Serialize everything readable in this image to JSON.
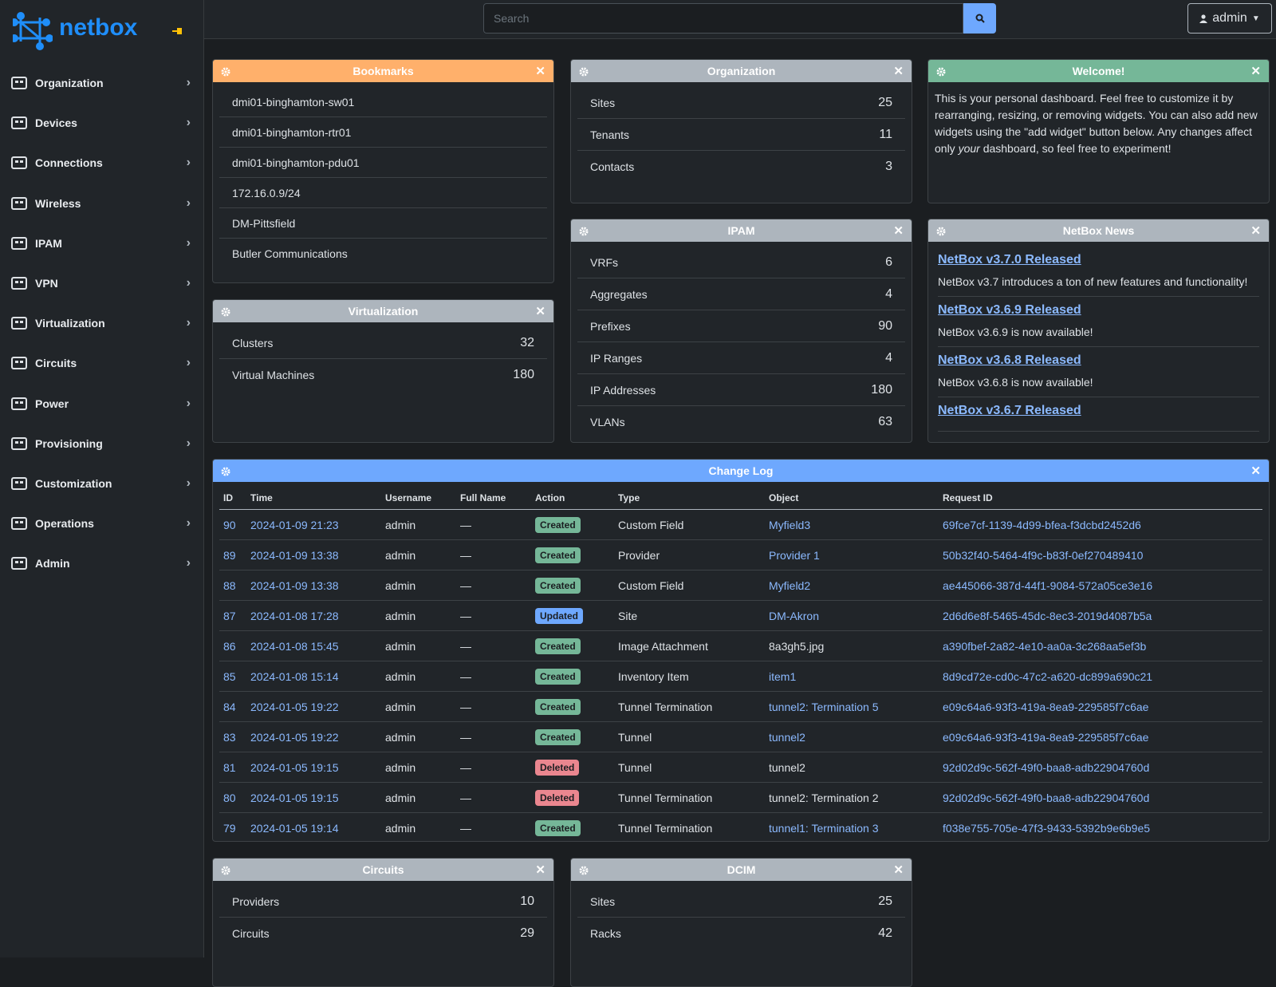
{
  "sidebar": {
    "brand": "netbox",
    "menu": [
      "Organization",
      "Devices",
      "Connections",
      "Wireless",
      "IPAM",
      "VPN",
      "Virtualization",
      "Circuits",
      "Power",
      "Provisioning",
      "Customization",
      "Operations",
      "Admin"
    ]
  },
  "header": {
    "search_placeholder": "Search",
    "user": "admin"
  },
  "widgets": {
    "bookmarks": {
      "title": "Bookmarks",
      "color": "#ffb06b",
      "items": [
        "dmi01-binghamton-sw01",
        "dmi01-binghamton-rtr01",
        "dmi01-binghamton-pdu01",
        "172.16.0.9/24",
        "DM-Pittsfield",
        "Butler Communications"
      ]
    },
    "organization": {
      "title": "Organization",
      "color": "#adb5bd",
      "rows": [
        {
          "label": "Sites",
          "value": 25
        },
        {
          "label": "Tenants",
          "value": 11
        },
        {
          "label": "Contacts",
          "value": 3
        }
      ]
    },
    "welcome": {
      "title": "Welcome!",
      "color": "#75b798",
      "text_before": "This is your personal dashboard. Feel free to customize it by rearranging, resizing, or removing widgets. You can also add new widgets using the \"add widget\" button below. Any changes affect only ",
      "text_emphasis": "your",
      "text_after": " dashboard, so feel free to experiment!"
    },
    "virtualization": {
      "title": "Virtualization",
      "color": "#adb5bd",
      "rows": [
        {
          "label": "Clusters",
          "value": 32
        },
        {
          "label": "Virtual Machines",
          "value": 180
        }
      ]
    },
    "ipam": {
      "title": "IPAM",
      "color": "#adb5bd",
      "rows": [
        {
          "label": "VRFs",
          "value": 6
        },
        {
          "label": "Aggregates",
          "value": 4
        },
        {
          "label": "Prefixes",
          "value": 90
        },
        {
          "label": "IP Ranges",
          "value": 4
        },
        {
          "label": "IP Addresses",
          "value": 180
        },
        {
          "label": "VLANs",
          "value": 63
        }
      ]
    },
    "news": {
      "title": "NetBox News",
      "color": "#adb5bd",
      "items": [
        {
          "title": "NetBox v3.7.0 Released",
          "description": "NetBox v3.7 introduces a ton of new features and functionality!"
        },
        {
          "title": "NetBox v3.6.9 Released",
          "description": "NetBox v3.6.9 is now available!"
        },
        {
          "title": "NetBox v3.6.8 Released",
          "description": "NetBox v3.6.8 is now available!"
        },
        {
          "title": "NetBox v3.6.7 Released"
        }
      ]
    },
    "change_log": {
      "title": "Change Log",
      "color": "#6ea8fe",
      "columns": [
        "ID",
        "Time",
        "Username",
        "Full Name",
        "Action",
        "Type",
        "Object",
        "Request ID"
      ],
      "rows": [
        {
          "id": 90,
          "time": "2024-01-09 21:23",
          "username": "admin",
          "full_name": "—",
          "action": "Created",
          "action_color": "#75b798",
          "type": "Custom Field",
          "object": "Myfield3",
          "object_link": true,
          "request_id": "69fce7cf-1139-4d99-bfea-f3dcbd2452d6"
        },
        {
          "id": 89,
          "time": "2024-01-09 13:38",
          "username": "admin",
          "full_name": "—",
          "action": "Created",
          "action_color": "#75b798",
          "type": "Provider",
          "object": "Provider 1",
          "object_link": true,
          "request_id": "50b32f40-5464-4f9c-b83f-0ef270489410"
        },
        {
          "id": 88,
          "time": "2024-01-09 13:38",
          "username": "admin",
          "full_name": "—",
          "action": "Created",
          "action_color": "#75b798",
          "type": "Custom Field",
          "object": "Myfield2",
          "object_link": true,
          "request_id": "ae445066-387d-44f1-9084-572a05ce3e16"
        },
        {
          "id": 87,
          "time": "2024-01-08 17:28",
          "username": "admin",
          "full_name": "—",
          "action": "Updated",
          "action_color": "#6ea8fe",
          "type": "Site",
          "object": "DM-Akron",
          "object_link": true,
          "request_id": "2d6d6e8f-5465-45dc-8ec3-2019d4087b5a"
        },
        {
          "id": 86,
          "time": "2024-01-08 15:45",
          "username": "admin",
          "full_name": "—",
          "action": "Created",
          "action_color": "#75b798",
          "type": "Image Attachment",
          "object": "8a3gh5.jpg",
          "object_link": false,
          "request_id": "a390fbef-2a82-4e10-aa0a-3c268aa5ef3b"
        },
        {
          "id": 85,
          "time": "2024-01-08 15:14",
          "username": "admin",
          "full_name": "—",
          "action": "Created",
          "action_color": "#75b798",
          "type": "Inventory Item",
          "object": "item1",
          "object_link": true,
          "request_id": "8d9cd72e-cd0c-47c2-a620-dc899a690c21"
        },
        {
          "id": 84,
          "time": "2024-01-05 19:22",
          "username": "admin",
          "full_name": "—",
          "action": "Created",
          "action_color": "#75b798",
          "type": "Tunnel Termination",
          "object": "tunnel2: Termination 5",
          "object_link": true,
          "request_id": "e09c64a6-93f3-419a-8ea9-229585f7c6ae"
        },
        {
          "id": 83,
          "time": "2024-01-05 19:22",
          "username": "admin",
          "full_name": "—",
          "action": "Created",
          "action_color": "#75b798",
          "type": "Tunnel",
          "object": "tunnel2",
          "object_link": true,
          "request_id": "e09c64a6-93f3-419a-8ea9-229585f7c6ae"
        },
        {
          "id": 81,
          "time": "2024-01-05 19:15",
          "username": "admin",
          "full_name": "—",
          "action": "Deleted",
          "action_color": "#ea868f",
          "type": "Tunnel",
          "object": "tunnel2",
          "object_link": false,
          "request_id": "92d02d9c-562f-49f0-baa8-adb22904760d"
        },
        {
          "id": 80,
          "time": "2024-01-05 19:15",
          "username": "admin",
          "full_name": "—",
          "action": "Deleted",
          "action_color": "#ea868f",
          "type": "Tunnel Termination",
          "object": "tunnel2: Termination 2",
          "object_link": false,
          "request_id": "92d02d9c-562f-49f0-baa8-adb22904760d"
        },
        {
          "id": 79,
          "time": "2024-01-05 19:14",
          "username": "admin",
          "full_name": "—",
          "action": "Created",
          "action_color": "#75b798",
          "type": "Tunnel Termination",
          "object": "tunnel1: Termination 3",
          "object_link": true,
          "request_id": "f038e755-705e-47f3-9433-5392b9e6b9e5"
        }
      ]
    },
    "circuits": {
      "title": "Circuits",
      "color": "#adb5bd",
      "rows": [
        {
          "label": "Providers",
          "value": 10
        },
        {
          "label": "Circuits",
          "value": 29
        }
      ]
    },
    "dcim": {
      "title": "DCIM",
      "color": "#adb5bd",
      "rows": [
        {
          "label": "Sites",
          "value": 25
        },
        {
          "label": "Racks",
          "value": 42
        }
      ]
    }
  }
}
